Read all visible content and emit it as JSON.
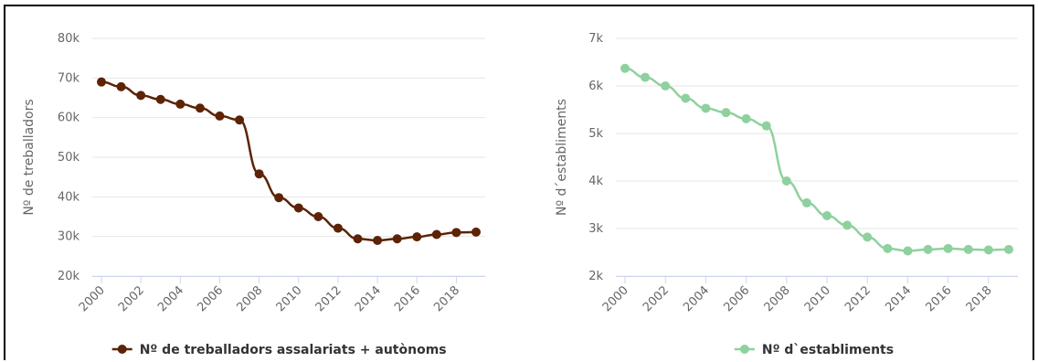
{
  "chart_data": [
    {
      "type": "line",
      "x": [
        2000,
        2001,
        2002,
        2003,
        2004,
        2005,
        2006,
        2007,
        2008,
        2009,
        2010,
        2011,
        2012,
        2013,
        2014,
        2015,
        2016,
        2017,
        2018,
        2019
      ],
      "series": [
        {
          "name": "Nº de treballadors assalariats + autònoms",
          "values": [
            69000,
            67800,
            65600,
            64600,
            63400,
            62400,
            60400,
            59400,
            45800,
            39800,
            37200,
            35000,
            32100,
            29400,
            29000,
            29400,
            29900,
            30500,
            31000,
            31100
          ],
          "color": "#5c2306"
        }
      ],
      "ylabel": "Nº de treballadors",
      "xlabel": "",
      "ylim": [
        20000,
        80000
      ],
      "yticks": [
        20000,
        30000,
        40000,
        50000,
        60000,
        70000,
        80000
      ],
      "ytick_labels": [
        "20k",
        "30k",
        "40k",
        "50k",
        "60k",
        "70k",
        "80k"
      ],
      "xticks": [
        2000,
        2002,
        2004,
        2006,
        2008,
        2010,
        2012,
        2014,
        2016,
        2018
      ],
      "grid": true,
      "legend": "bottom"
    },
    {
      "type": "line",
      "x": [
        2000,
        2001,
        2002,
        2003,
        2004,
        2005,
        2006,
        2007,
        2008,
        2009,
        2010,
        2011,
        2012,
        2013,
        2014,
        2015,
        2016,
        2017,
        2018,
        2019
      ],
      "series": [
        {
          "name": "Nº d`establiments",
          "values": [
            6370,
            6180,
            6000,
            5740,
            5530,
            5440,
            5310,
            5160,
            4000,
            3540,
            3270,
            3070,
            2820,
            2580,
            2530,
            2560,
            2580,
            2560,
            2550,
            2560
          ],
          "color": "#8fd19e"
        }
      ],
      "ylabel": "Nº d´establiments",
      "xlabel": "",
      "ylim": [
        2000,
        7000
      ],
      "yticks": [
        2000,
        3000,
        4000,
        5000,
        6000,
        7000
      ],
      "ytick_labels": [
        "2k",
        "3k",
        "4k",
        "5k",
        "6k",
        "7k"
      ],
      "xticks": [
        2000,
        2002,
        2004,
        2006,
        2008,
        2010,
        2012,
        2014,
        2016,
        2018
      ],
      "grid": true,
      "legend": "bottom"
    }
  ]
}
